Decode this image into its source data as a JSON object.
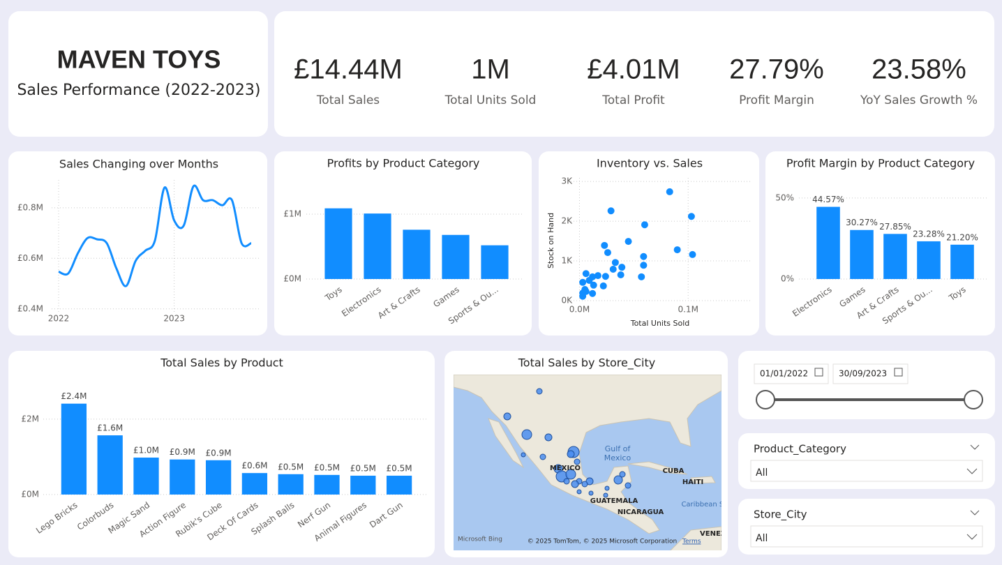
{
  "header": {
    "title": "MAVEN TOYS",
    "subtitle": "Sales Performance (2022-2023)"
  },
  "kpis": [
    {
      "value": "£14.44M",
      "label": "Total Sales"
    },
    {
      "value": "1M",
      "label": "Total Units Sold"
    },
    {
      "value": "£4.01M",
      "label": "Total Profit"
    },
    {
      "value": "27.79%",
      "label": "Profit Margin"
    },
    {
      "value": "23.58%",
      "label": "YoY Sales Growth %"
    }
  ],
  "chart_data": [
    {
      "type": "line",
      "title": "Sales Changing over Months",
      "color": "#118dff",
      "grid": true,
      "categories": [
        "2022",
        null,
        null,
        null,
        null,
        null,
        null,
        null,
        null,
        null,
        null,
        null,
        "2023",
        null,
        null,
        null,
        null,
        null,
        null,
        null,
        null
      ],
      "values": [
        0.547,
        0.54,
        0.62,
        0.68,
        0.675,
        0.66,
        0.56,
        0.49,
        0.59,
        0.63,
        0.67,
        0.88,
        0.75,
        0.73,
        0.885,
        0.83,
        0.83,
        0.81,
        0.83,
        0.66,
        0.66
      ],
      "ylim": [
        0.38,
        0.91
      ],
      "yticks": [
        {
          "value": 0.4,
          "label": "£0.4M"
        },
        {
          "value": 0.6,
          "label": "£0.6M"
        },
        {
          "value": 0.8,
          "label": "£0.8M"
        }
      ]
    },
    {
      "type": "bar",
      "title": "Profits by Product Category",
      "color": "#118dff",
      "grid": true,
      "categories": [
        "Toys",
        "Electronics",
        "Art & Crafts",
        "Games",
        "Sports & Ou..."
      ],
      "values": [
        1.09,
        1.01,
        0.76,
        0.68,
        0.52
      ],
      "ylim": [
        0,
        1.35
      ],
      "yticks": [
        {
          "value": 0,
          "label": "£0M"
        },
        {
          "value": 1,
          "label": "£1M"
        }
      ]
    },
    {
      "type": "scatter",
      "title": "Inventory vs. Sales",
      "color": "#118dff",
      "grid": true,
      "x_label": "Total Units Sold",
      "y_label": "Stock on Hand",
      "x": [
        0.083,
        0.103,
        0.029,
        0.06,
        0.023,
        0.045,
        0.026,
        0.059,
        0.09,
        0.104,
        0.033,
        0.059,
        0.031,
        0.039,
        0.038,
        0.057,
        0.024,
        0.017,
        0.012,
        0.006,
        0.009,
        0.003,
        0.013,
        0.022,
        0.005,
        0.006,
        0.003,
        0.012,
        0.003
      ],
      "values": [
        2.74,
        2.12,
        2.26,
        1.91,
        1.39,
        1.49,
        1.21,
        1.11,
        1.28,
        1.16,
        0.96,
        0.89,
        0.79,
        0.84,
        0.65,
        0.6,
        0.61,
        0.63,
        0.6,
        0.68,
        0.51,
        0.46,
        0.39,
        0.37,
        0.28,
        0.23,
        0.19,
        0.18,
        0.11
      ],
      "xlim": [
        -0.008,
        0.157
      ],
      "ylim": [
        0,
        3.09
      ],
      "xticks": [
        {
          "value": 0,
          "label": "0.0M"
        },
        {
          "value": 0.1,
          "label": "0.1M"
        }
      ],
      "yticks": [
        {
          "value": 0,
          "label": "0K"
        },
        {
          "value": 1,
          "label": "1K"
        },
        {
          "value": 2,
          "label": "2K"
        },
        {
          "value": 3,
          "label": "3K"
        }
      ]
    },
    {
      "type": "bar",
      "title": "Profit Margin by Product Category",
      "color": "#118dff",
      "grid": true,
      "categories": [
        "Electronics",
        "Games",
        "Art & Crafts",
        "Sports & Ou...",
        "Toys"
      ],
      "values": [
        44.57,
        30.27,
        27.85,
        23.28,
        21.2
      ],
      "value_labels": [
        "44.57%",
        "30.27%",
        "27.85%",
        "23.28%",
        "21.20%"
      ],
      "ylim": [
        0,
        56
      ],
      "yticks": [
        {
          "value": 0,
          "label": "0%"
        },
        {
          "value": 50,
          "label": "50%"
        }
      ]
    },
    {
      "type": "bar",
      "title": "Total Sales by Product",
      "color": "#118dff",
      "grid": true,
      "categories": [
        "Lego Bricks",
        "Colorbuds",
        "Magic Sand",
        "Action Figure",
        "Rubik's Cube",
        "Deck Of Cards",
        "Splash Balls",
        "Nerf Gun",
        "Animal Figures",
        "Dart Gun"
      ],
      "values": [
        2.41,
        1.57,
        0.98,
        0.93,
        0.91,
        0.57,
        0.54,
        0.52,
        0.5,
        0.5
      ],
      "value_labels": [
        "£2.4M",
        "£1.6M",
        "£1.0M",
        "£0.9M",
        "£0.9M",
        "£0.6M",
        "£0.5M",
        "£0.5M",
        "£0.5M",
        "£0.5M"
      ],
      "ylim": [
        0,
        2.7
      ],
      "yticks": [
        {
          "value": 0,
          "label": "£0M"
        },
        {
          "value": 2,
          "label": "£2M"
        }
      ]
    }
  ],
  "map": {
    "title": "Total Sales by Store_City",
    "place_labels": [
      "Gulf of",
      "Mexico",
      "MEXICO",
      "CUBA",
      "HAITI",
      "GUATEMALA",
      "NICARAGUA",
      "Caribbean Sea",
      "VENEZ"
    ],
    "provider": "Microsoft Bing",
    "attribution": "© 2025 TomTom, © 2025 Microsoft Corporation",
    "terms": "Terms"
  },
  "date_filter": {
    "start": "01/01/2022",
    "end": "30/09/2023"
  },
  "slicers": [
    {
      "title": "Product_Category",
      "value": "All"
    },
    {
      "title": "Store_City",
      "value": "All"
    }
  ]
}
